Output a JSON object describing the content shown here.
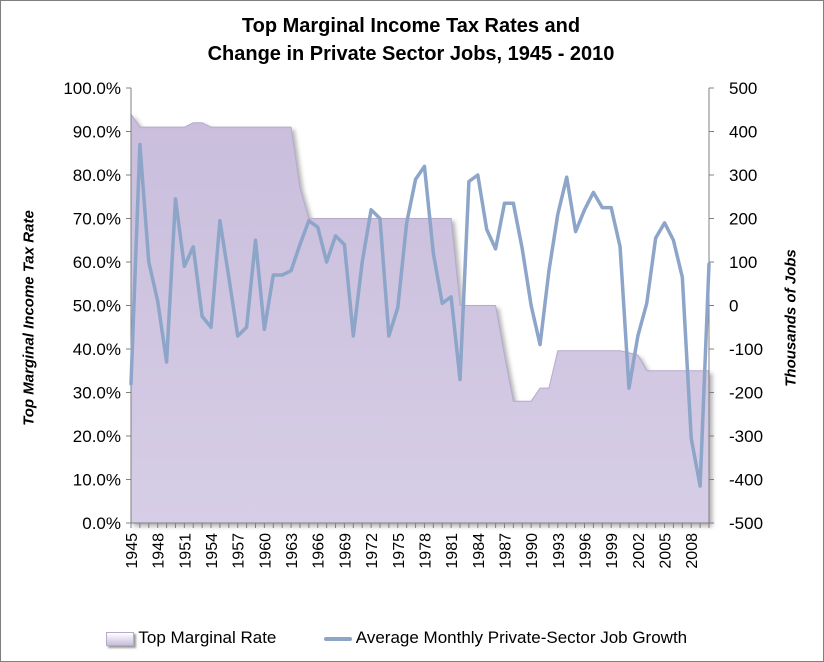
{
  "chart_data": {
    "type": "area+line",
    "title_lines": [
      "Top Marginal Income Tax Rates and",
      "Change in Private Sector Jobs, 1945 - 2010"
    ],
    "ylabel_left": "Top Marginal Income Tax Rate",
    "ylabel_right": "Thousands of Jobs",
    "x_tick_labels": [
      "1945",
      "1948",
      "1951",
      "1954",
      "1957",
      "1960",
      "1963",
      "1966",
      "1969",
      "1972",
      "1975",
      "1978",
      "1981",
      "1984",
      "1987",
      "1990",
      "1993",
      "1996",
      "1999",
      "2002",
      "2005",
      "2008"
    ],
    "left_ticks": [
      "0.0%",
      "10.0%",
      "20.0%",
      "30.0%",
      "40.0%",
      "50.0%",
      "60.0%",
      "70.0%",
      "80.0%",
      "90.0%",
      "100.0%"
    ],
    "right_ticks": [
      "-500",
      "-400",
      "-300",
      "-200",
      "-100",
      "0",
      "100",
      "200",
      "300",
      "400",
      "500"
    ],
    "ylim_left": [
      0,
      100
    ],
    "ylim_right": [
      -500,
      500
    ],
    "colors": {
      "area": "#c9bedc",
      "area_edge": "#b7a9cc",
      "line": "#8ca5c8"
    },
    "x": [
      1945,
      1946,
      1947,
      1948,
      1949,
      1950,
      1951,
      1952,
      1953,
      1954,
      1955,
      1956,
      1957,
      1958,
      1959,
      1960,
      1961,
      1962,
      1963,
      1964,
      1965,
      1966,
      1967,
      1968,
      1969,
      1970,
      1971,
      1972,
      1973,
      1974,
      1975,
      1976,
      1977,
      1978,
      1979,
      1980,
      1981,
      1982,
      1983,
      1984,
      1985,
      1986,
      1987,
      1988,
      1989,
      1990,
      1991,
      1992,
      1993,
      1994,
      1995,
      1996,
      1997,
      1998,
      1999,
      2000,
      2001,
      2002,
      2003,
      2004,
      2005,
      2006,
      2007,
      2008,
      2009,
      2010
    ],
    "series": [
      {
        "name": "Top Marginal Rate",
        "type": "area",
        "axis": "left",
        "values": [
          94,
          91,
          91,
          91,
          91,
          91,
          91,
          92,
          92,
          91,
          91,
          91,
          91,
          91,
          91,
          91,
          91,
          91,
          91,
          77,
          70,
          70,
          70,
          70,
          70,
          70,
          70,
          70,
          70,
          70,
          70,
          70,
          70,
          70,
          70,
          70,
          70,
          50,
          50,
          50,
          50,
          50,
          38.5,
          28,
          28,
          28,
          31,
          31,
          39.6,
          39.6,
          39.6,
          39.6,
          39.6,
          39.6,
          39.6,
          39.6,
          39.1,
          38.6,
          35,
          35,
          35,
          35,
          35,
          35,
          35,
          35
        ]
      },
      {
        "name": "Average Monthly Private-Sector Job Growth",
        "type": "line",
        "axis": "right",
        "values": [
          -180,
          370,
          100,
          10,
          -130,
          245,
          90,
          135,
          -25,
          -50,
          195,
          65,
          -70,
          -50,
          150,
          -55,
          70,
          70,
          80,
          140,
          195,
          180,
          100,
          160,
          140,
          -70,
          100,
          220,
          200,
          -70,
          -5,
          190,
          290,
          320,
          120,
          5,
          20,
          -170,
          285,
          300,
          175,
          130,
          235,
          235,
          130,
          0,
          -90,
          80,
          210,
          295,
          170,
          220,
          260,
          225,
          225,
          135,
          -190,
          -70,
          5,
          155,
          190,
          150,
          65,
          -305,
          -415,
          95
        ]
      }
    ]
  }
}
